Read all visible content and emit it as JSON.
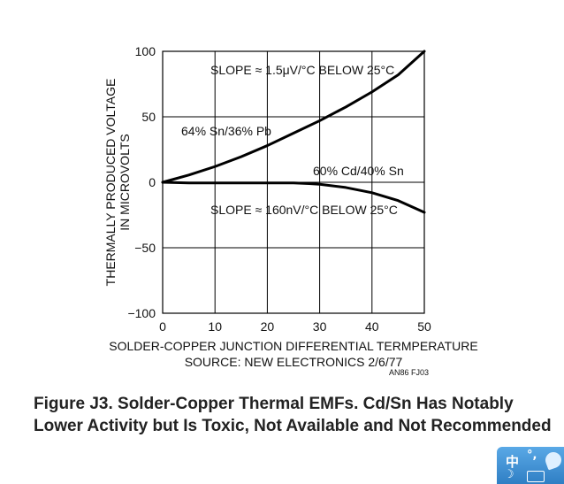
{
  "chart_data": {
    "type": "line",
    "xlabel": "SOLDER-COPPER JUNCTION DIFFERENTIAL TERMPERATURE",
    "ylabel": [
      "THERMALLY PRODUCED VOLTAGE",
      "IN MICROVOLTS"
    ],
    "xlim": [
      0,
      50
    ],
    "ylim": [
      -100,
      100
    ],
    "x_ticks": [
      "0",
      "10",
      "20",
      "30",
      "40",
      "50"
    ],
    "y_ticks": [
      "100",
      "50",
      "0",
      "−50",
      "−100"
    ],
    "x_tick_values": [
      0,
      10,
      20,
      30,
      40,
      50
    ],
    "y_tick_values": [
      100,
      50,
      0,
      -50,
      -100
    ],
    "grid": true,
    "series": [
      {
        "name": "64% Sn/36% Pb",
        "x": [
          0,
          5,
          10,
          15,
          20,
          25,
          30,
          35,
          40,
          45,
          50
        ],
        "y": [
          0,
          5.5,
          12,
          19.5,
          28,
          37.5,
          47,
          57.5,
          69,
          82,
          100
        ]
      },
      {
        "name": "60% Cd/40% Sn",
        "x": [
          0,
          5,
          10,
          15,
          20,
          25,
          28,
          30,
          35,
          40,
          45,
          50
        ],
        "y": [
          0,
          -0.5,
          -0.5,
          -0.5,
          -0.5,
          -0.5,
          -1,
          -1.5,
          -4,
          -8,
          -14,
          -23
        ]
      }
    ],
    "annotations": {
      "slope_upper": "SLOPE ≈ 1.5μV/°C BELOW 25°C",
      "slope_lower": "SLOPE ≈ 160nV/°C BELOW 25°C",
      "source": "SOURCE: NEW ELECTRONICS 2/6/77",
      "fig_id": "AN86 FJ03"
    }
  },
  "caption": {
    "line1": "Figure J3. Solder-Copper Thermal EMFs. Cd/Sn Has Notably",
    "line2": "Lower Activity but Is Toxic, Not Available and Not Recommended"
  },
  "ime": {
    "char": "中",
    "dot": "°,",
    "moon": "☽"
  }
}
